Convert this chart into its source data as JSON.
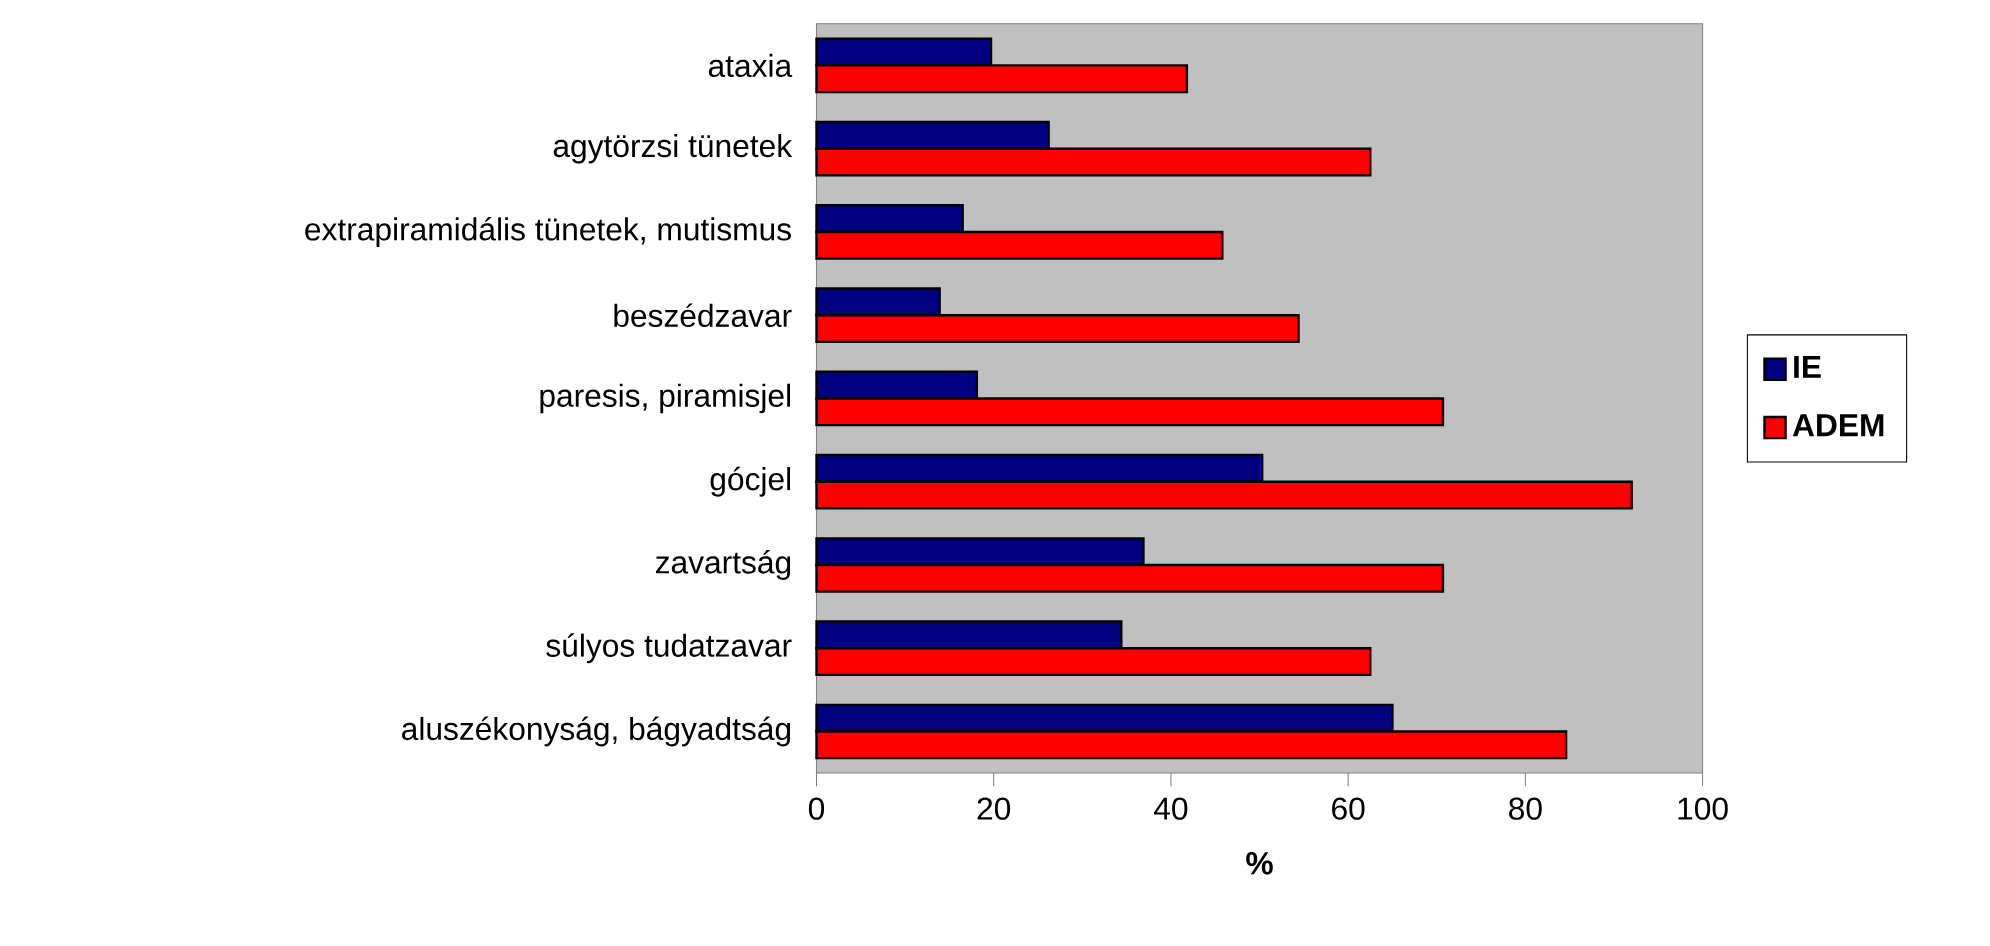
{
  "chart_data": {
    "type": "bar",
    "orientation": "horizontal",
    "xlabel": "%",
    "categories": [
      "ataxia",
      "agytörzsi tünetek",
      "extrapiramidális tünetek, mutismus",
      "beszédzavar",
      "paresis, piramisjel",
      "gócjel",
      "zavartság",
      "súlyos tudatzavar",
      "aluszékonyság, bágyadtság"
    ],
    "series": [
      {
        "name": "IE",
        "color": "#000080",
        "values": [
          19.7,
          26.2,
          16.5,
          13.9,
          18.1,
          50.3,
          36.9,
          34.4,
          65.0
        ]
      },
      {
        "name": "ADEM",
        "color": "#ff0000",
        "values": [
          41.8,
          62.5,
          45.8,
          54.4,
          70.7,
          92.0,
          70.7,
          62.5,
          84.6
        ]
      }
    ],
    "xlim": [
      0,
      100
    ],
    "xticks": [
      0,
      20,
      40,
      60,
      80,
      100
    ],
    "grid": false,
    "legend": "right"
  }
}
